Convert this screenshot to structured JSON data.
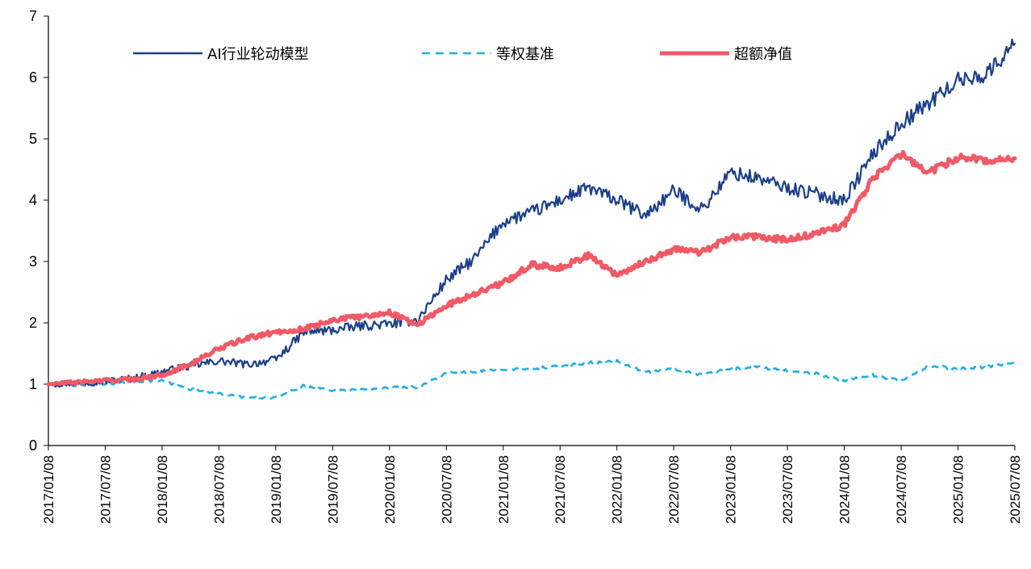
{
  "chart_data": {
    "type": "line",
    "title": "",
    "xlabel": "",
    "ylabel": "",
    "ylim": [
      0,
      7
    ],
    "yticks": [
      "0",
      "1",
      "2",
      "3",
      "4",
      "5",
      "6",
      "7"
    ],
    "xticks": [
      "2017/01/08",
      "2017/07/08",
      "2018/01/08",
      "2018/07/08",
      "2019/01/08",
      "2019/07/08",
      "2020/01/08",
      "2020/07/08",
      "2021/01/08",
      "2021/07/08",
      "2022/01/08",
      "2022/07/08",
      "2023/01/08",
      "2023/07/08",
      "2024/01/08",
      "2024/07/08",
      "2025/01/08",
      "2025/07/08"
    ],
    "grid": false,
    "legend_position": "top",
    "x": [
      "2017-01",
      "2017-04",
      "2017-07",
      "2017-10",
      "2018-01",
      "2018-04",
      "2018-07",
      "2018-10",
      "2019-01",
      "2019-04",
      "2019-07",
      "2019-10",
      "2020-01",
      "2020-04",
      "2020-07",
      "2020-10",
      "2021-01",
      "2021-04",
      "2021-07",
      "2021-10",
      "2022-01",
      "2022-04",
      "2022-07",
      "2022-10",
      "2023-01",
      "2023-04",
      "2023-07",
      "2023-10",
      "2024-01",
      "2024-04",
      "2024-07",
      "2024-10",
      "2025-01",
      "2025-04",
      "2025-07"
    ],
    "series": [
      {
        "name": "AI行业轮动模型",
        "color": "#1b3f8b",
        "style": "solid",
        "values": [
          1.0,
          1.02,
          1.05,
          1.1,
          1.2,
          1.3,
          1.38,
          1.32,
          1.4,
          1.85,
          1.88,
          1.95,
          1.98,
          2.05,
          2.7,
          3.05,
          3.65,
          3.8,
          4.0,
          4.2,
          4.0,
          3.75,
          4.15,
          3.85,
          4.45,
          4.35,
          4.2,
          4.1,
          4.0,
          4.75,
          5.25,
          5.6,
          5.95,
          6.05,
          6.55
        ]
      },
      {
        "name": "等权基准",
        "color": "#21aee6",
        "style": "dashed",
        "values": [
          1.0,
          0.98,
          1.0,
          1.05,
          1.05,
          0.92,
          0.85,
          0.78,
          0.78,
          0.98,
          0.9,
          0.92,
          0.95,
          0.95,
          1.18,
          1.2,
          1.25,
          1.25,
          1.3,
          1.35,
          1.38,
          1.2,
          1.25,
          1.15,
          1.25,
          1.28,
          1.22,
          1.18,
          1.05,
          1.15,
          1.05,
          1.3,
          1.25,
          1.28,
          1.35
        ]
      },
      {
        "name": "超额净值",
        "color": "#f05a66",
        "style": "solid",
        "values": [
          1.0,
          1.03,
          1.06,
          1.08,
          1.15,
          1.33,
          1.58,
          1.75,
          1.85,
          1.9,
          2.05,
          2.1,
          2.17,
          1.97,
          2.28,
          2.48,
          2.65,
          2.95,
          2.9,
          3.1,
          2.78,
          3.0,
          3.2,
          3.15,
          3.4,
          3.4,
          3.35,
          3.45,
          3.6,
          4.35,
          4.75,
          4.45,
          4.7,
          4.65,
          4.68
        ]
      }
    ]
  }
}
